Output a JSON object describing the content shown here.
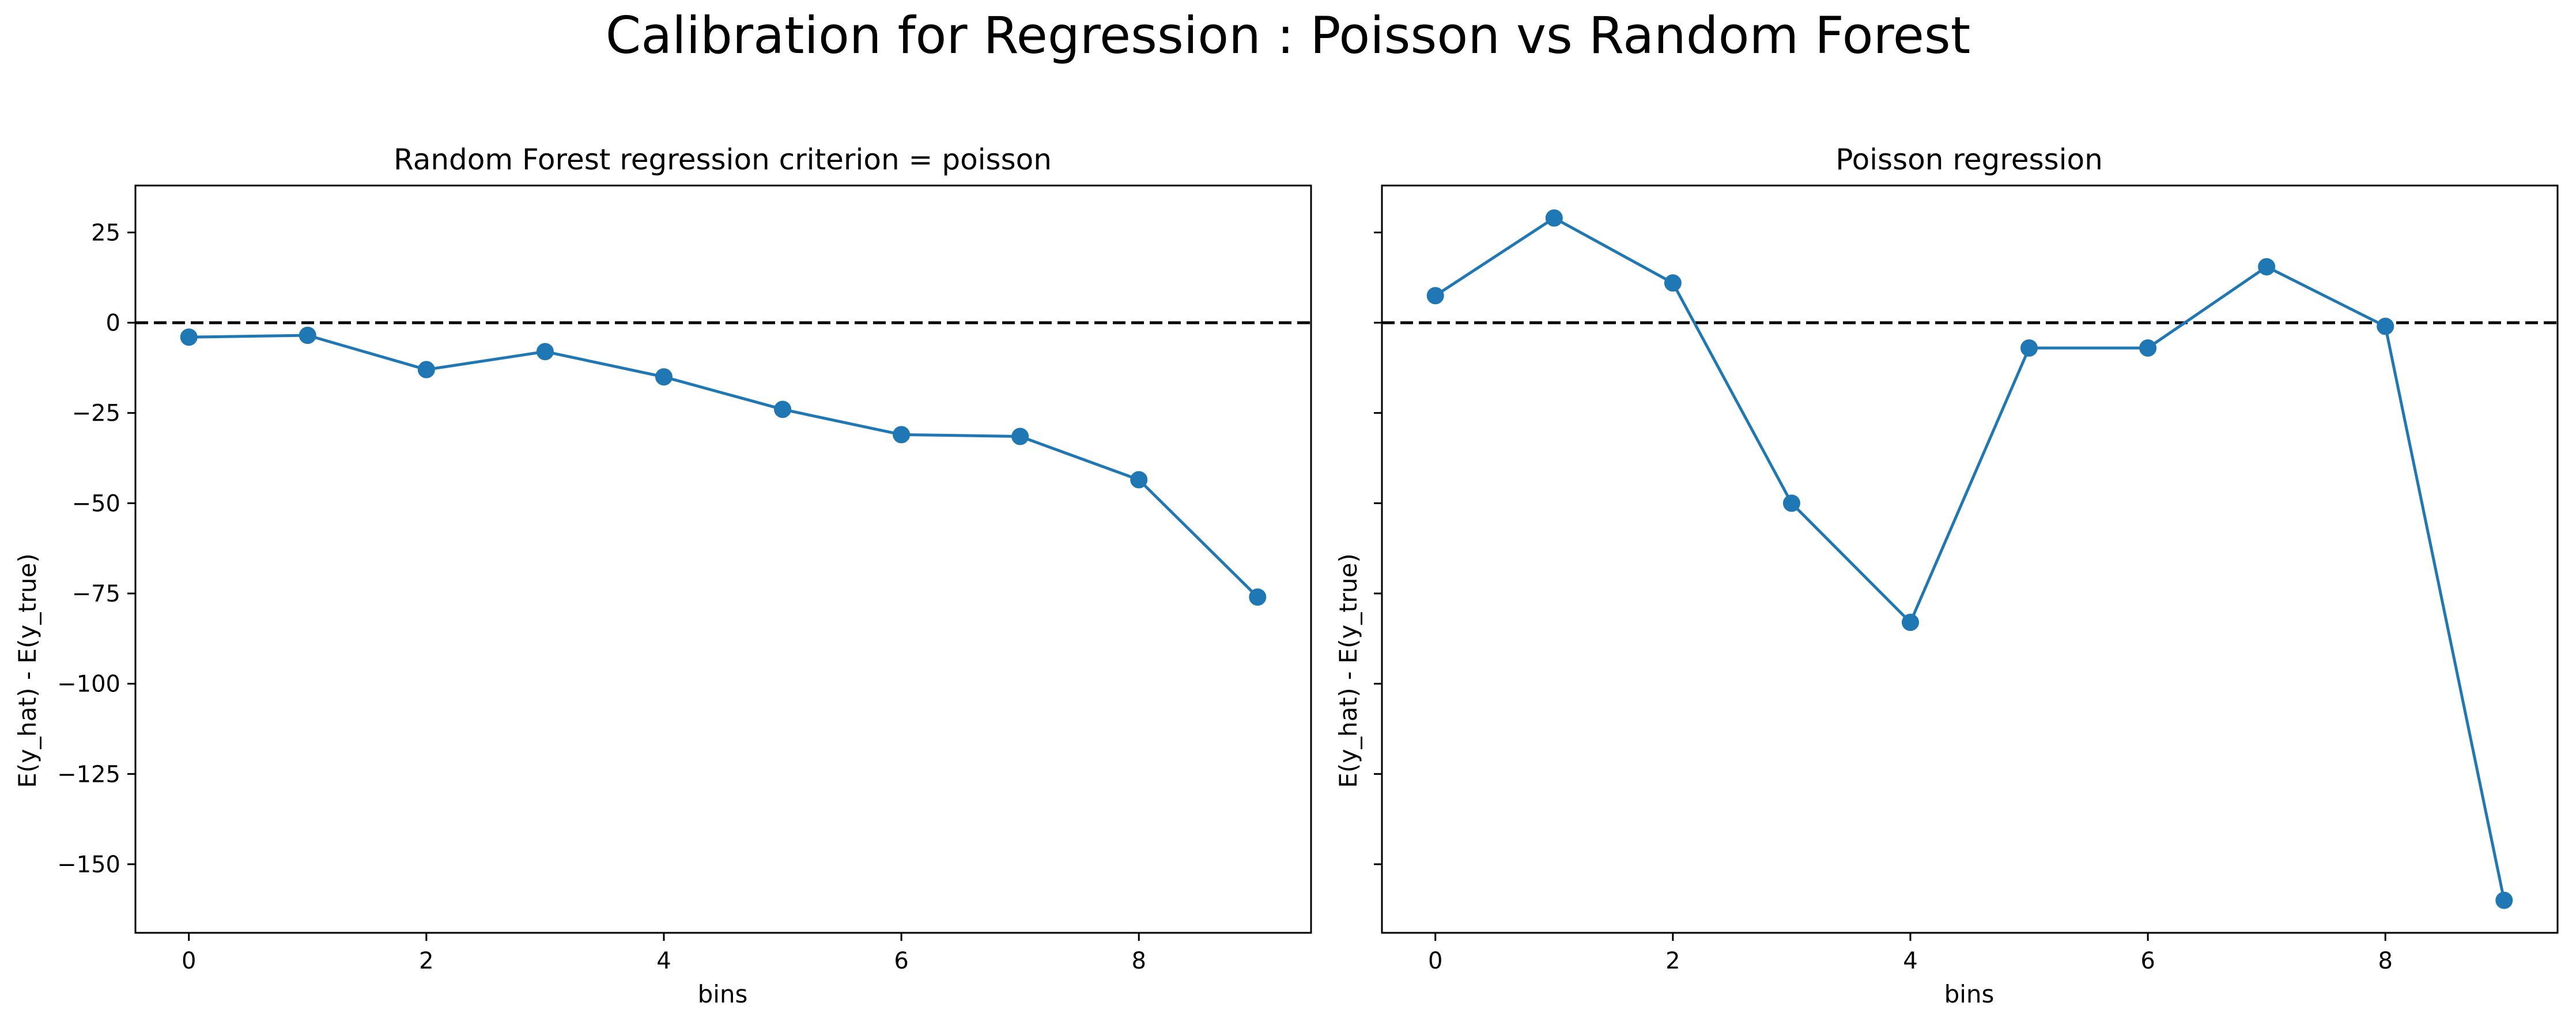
{
  "figure": {
    "suptitle": "Calibration for Regression : Poisson vs Random Forest"
  },
  "colors": {
    "series": "#1f77b4",
    "reference_line": "#000000"
  },
  "chart_data": [
    {
      "type": "line",
      "title": "Random Forest regression criterion = poisson",
      "xlabel": "bins",
      "ylabel": "E(y_hat) - E(y_true)",
      "x": [
        0,
        1,
        2,
        3,
        4,
        5,
        6,
        7,
        8,
        9
      ],
      "values": [
        -4,
        -3.5,
        -13,
        -8,
        -15,
        -24,
        -31,
        -31.5,
        -43.5,
        -76
      ],
      "markers": true,
      "reference_line": {
        "y": 0,
        "style": "dashed"
      },
      "xlim": [
        -0.45,
        9.45
      ],
      "ylim": [
        -169,
        38
      ],
      "xticks": [
        0,
        2,
        4,
        6,
        8
      ],
      "yticks": [
        25,
        0,
        -25,
        -50,
        -75,
        -100,
        -125,
        -150
      ],
      "yticklabels": [
        "25",
        "0",
        "−25",
        "−50",
        "−75",
        "−100",
        "−125",
        "−150"
      ],
      "grid": false,
      "legend": "none"
    },
    {
      "type": "line",
      "title": "Poisson regression",
      "xlabel": "bins",
      "ylabel": "E(y_hat) - E(y_true)",
      "x": [
        0,
        1,
        2,
        3,
        4,
        5,
        6,
        7,
        8,
        9
      ],
      "values": [
        7.5,
        29,
        11,
        -50,
        -83,
        -7,
        -7,
        15.5,
        -1,
        -160
      ],
      "markers": true,
      "reference_line": {
        "y": 0,
        "style": "dashed"
      },
      "xlim": [
        -0.45,
        9.45
      ],
      "ylim": [
        -169,
        38
      ],
      "xticks": [
        0,
        2,
        4,
        6,
        8
      ],
      "yticks": [
        25,
        0,
        -25,
        -50,
        -75,
        -100,
        -125,
        -150
      ],
      "yticklabels": [],
      "grid": false,
      "legend": "none"
    }
  ]
}
